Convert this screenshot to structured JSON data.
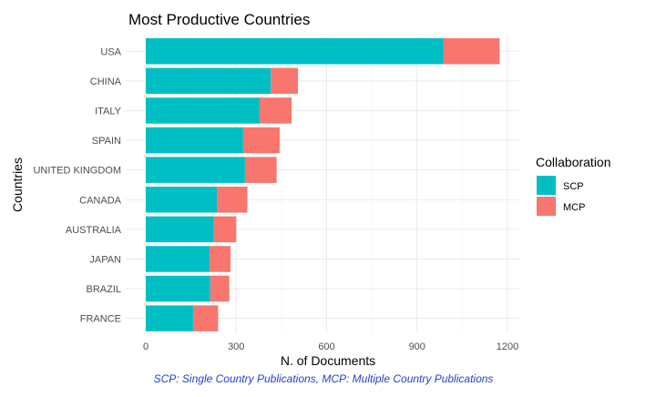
{
  "chart_data": {
    "type": "bar",
    "orientation": "horizontal",
    "stacked": true,
    "title": "Most Productive Countries",
    "xlabel": "N. of Documents",
    "ylabel": "Countries",
    "caption": "SCP: Single Country Publications, MCP: Multiple Country Publications",
    "categories": [
      "USA",
      "CHINA",
      "ITALY",
      "SPAIN",
      "UNITED KINGDOM",
      "CANADA",
      "AUSTRALIA",
      "JAPAN",
      "BRAZIL",
      "FRANCE"
    ],
    "series": [
      {
        "name": "SCP",
        "color": "#00BFC4",
        "values": [
          988,
          415,
          378,
          323,
          329,
          236,
          226,
          212,
          214,
          157
        ]
      },
      {
        "name": "MCP",
        "color": "#F8766D",
        "values": [
          186,
          90,
          106,
          121,
          105,
          101,
          74,
          69,
          63,
          83
        ]
      }
    ],
    "xlim": [
      0,
      1230
    ],
    "xticks": [
      0,
      300,
      600,
      900,
      1200
    ],
    "grid": true,
    "legend": {
      "title": "Collaboration",
      "position": "right"
    }
  }
}
